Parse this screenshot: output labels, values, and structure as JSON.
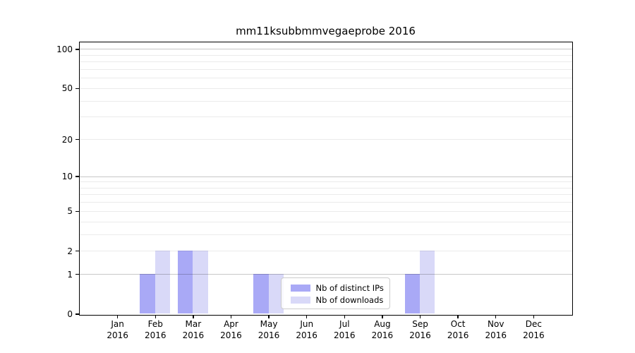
{
  "chart_data": {
    "type": "bar",
    "title": "mm11ksubbmmvegaeprobe 2016",
    "x": [
      "Jan 2016",
      "Feb 2016",
      "Mar 2016",
      "Apr 2016",
      "May 2016",
      "Jun 2016",
      "Jul 2016",
      "Aug 2016",
      "Sep 2016",
      "Oct 2016",
      "Nov 2016",
      "Dec 2016"
    ],
    "months": [
      "Jan",
      "Feb",
      "Mar",
      "Apr",
      "May",
      "Jun",
      "Jul",
      "Aug",
      "Sep",
      "Oct",
      "Nov",
      "Dec"
    ],
    "year": "2016",
    "series": [
      {
        "name": "Nb of distinct IPs",
        "color": "#a9a9f6",
        "values": [
          0,
          1,
          2,
          0,
          1,
          0,
          0,
          0,
          1,
          0,
          0,
          0
        ]
      },
      {
        "name": "Nb of downloads",
        "color": "#d9d9f8",
        "values": [
          0,
          2,
          2,
          0,
          1,
          0,
          0,
          0,
          2,
          0,
          0,
          0
        ]
      }
    ],
    "yscale": "log1p",
    "ylim": [
      0,
      113
    ],
    "y_tick_values": [
      0,
      1,
      2,
      5,
      10,
      20,
      50,
      100
    ],
    "y_grid_decades": [
      1,
      10,
      100
    ],
    "y_grid_minor": [
      2,
      3,
      4,
      5,
      6,
      7,
      8,
      9,
      20,
      30,
      40,
      50,
      60,
      70,
      80,
      90
    ],
    "grid": true,
    "legend_position": "lower center"
  },
  "styles": {
    "background": "#ffffff",
    "axis_color": "#000000",
    "text_color": "#000000",
    "grid_major_color": "rgba(0,0,0,0.22)",
    "grid_minor_color": "rgba(0,0,0,0.08)",
    "legend_border_color": "#cccccc",
    "legend_background": "rgba(255,255,255,0.8)"
  }
}
